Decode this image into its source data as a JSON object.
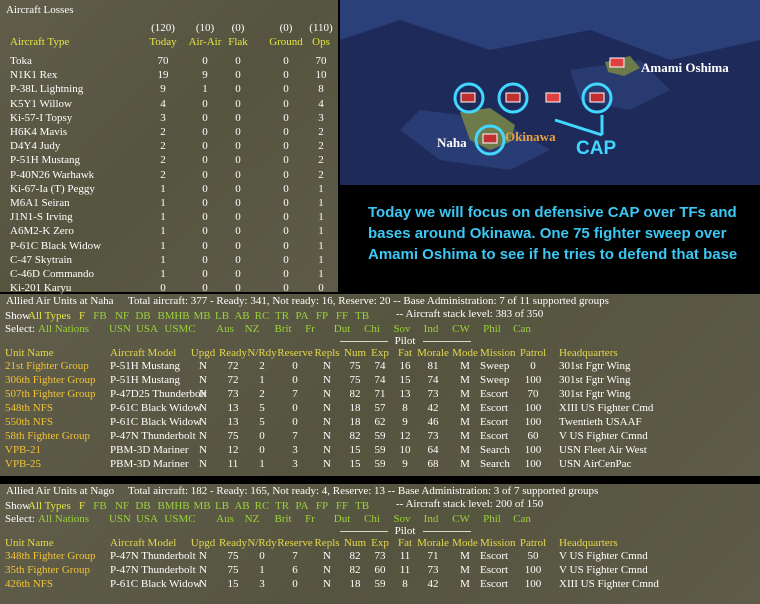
{
  "losses": {
    "title": "Aircraft Losses",
    "totals": [
      "(120)",
      "(10)",
      "(0)",
      "(0)",
      "(110)"
    ],
    "headers": [
      "Aircraft Type",
      "Today",
      "Air-Air",
      "Flak",
      "Ground",
      "Ops"
    ],
    "rows": [
      [
        "Toka",
        70,
        0,
        0,
        0,
        70
      ],
      [
        "N1K1 Rex",
        19,
        9,
        0,
        0,
        10
      ],
      [
        "P-38L Lightning",
        9,
        1,
        0,
        0,
        8
      ],
      [
        "K5Y1 Willow",
        4,
        0,
        0,
        0,
        4
      ],
      [
        "Ki-57-I Topsy",
        3,
        0,
        0,
        0,
        3
      ],
      [
        "H6K4 Mavis",
        2,
        0,
        0,
        0,
        2
      ],
      [
        "D4Y4 Judy",
        2,
        0,
        0,
        0,
        2
      ],
      [
        "P-51H Mustang",
        2,
        0,
        0,
        0,
        2
      ],
      [
        "P-40N26 Warhawk",
        2,
        0,
        0,
        0,
        2
      ],
      [
        "Ki-67-Ia (T) Peggy",
        1,
        0,
        0,
        0,
        1
      ],
      [
        "M6A1 Seiran",
        1,
        0,
        0,
        0,
        1
      ],
      [
        "J1N1-S Irving",
        1,
        0,
        0,
        0,
        1
      ],
      [
        "A6M2-K Zero",
        1,
        0,
        0,
        0,
        1
      ],
      [
        "P-61C Black Widow",
        1,
        0,
        0,
        0,
        1
      ],
      [
        "C-47 Skytrain",
        1,
        0,
        0,
        0,
        1
      ],
      [
        "C-46D Commando",
        1,
        0,
        0,
        0,
        1
      ],
      [
        "Ki-201 Karyu",
        0,
        0,
        0,
        0,
        0
      ]
    ]
  },
  "map": {
    "labels": [
      "Amami Oshima",
      "Naha",
      "Okinawa",
      "CAP"
    ]
  },
  "annotation": "Today we will focus on defensive CAP over TFs and bases around Okinawa. One 75 fighter sweep over Amami Oshima to see if he tries to defend that base",
  "bases": [
    {
      "title": "Allied Air Units at Naha",
      "summary": "Total aircraft: 377 - Ready: 341, Not ready: 16, Reserve: 20 -- Base Administration: 7 of 11 supported groups",
      "show_label": "Show",
      "types": [
        "All Types",
        "F",
        "FB",
        "NF",
        "DB",
        "BM",
        "HB",
        "MB",
        "LB",
        "AB",
        "RC",
        "TR",
        "PA",
        "FP",
        "FF",
        "TB"
      ],
      "select_label": "Select:",
      "nations": [
        "All Nations",
        "USN",
        "USA",
        "USMC",
        "Aus",
        "NZ",
        "Brit",
        "Fr",
        "Dut",
        "Chi",
        "Sov",
        "Ind",
        "CW",
        "Phil",
        "Can"
      ],
      "stack_level": "-- Aircraft stack level: 383 of 350",
      "pilot": "Pilot",
      "headers": [
        "Unit Name",
        "Aircraft Model",
        "Upgd",
        "Ready",
        "N/Rdy",
        "Reserve",
        "Repls",
        "Num",
        "Exp",
        "Fat",
        "Morale",
        "Mode",
        "Mission",
        "Patrol",
        "Headquarters"
      ],
      "rows": [
        [
          "21st Fighter Group",
          "P-51H Mustang",
          "N",
          72,
          2,
          0,
          "N",
          75,
          74,
          16,
          81,
          "M",
          "Sweep",
          0,
          "301st Fgtr Wing"
        ],
        [
          "306th Fighter Group",
          "P-51H Mustang",
          "N",
          72,
          1,
          0,
          "N",
          75,
          74,
          15,
          74,
          "M",
          "Sweep",
          100,
          "301st Fgtr Wing"
        ],
        [
          "507th Fighter Group",
          "P-47D25 Thunderbolt",
          "N",
          73,
          2,
          7,
          "N",
          82,
          71,
          13,
          73,
          "M",
          "Escort",
          70,
          "301st Fgtr Wing"
        ],
        [
          "548th NFS",
          "P-61C Black Widow",
          "N",
          13,
          5,
          0,
          "N",
          18,
          57,
          8,
          42,
          "M",
          "Escort",
          100,
          "XIII US Fighter Cmd"
        ],
        [
          "550th NFS",
          "P-61C Black Widow",
          "N",
          13,
          5,
          0,
          "N",
          18,
          62,
          9,
          46,
          "M",
          "Escort",
          100,
          "Twentieth USAAF"
        ],
        [
          "58th Fighter Group",
          "P-47N Thunderbolt",
          "N",
          75,
          0,
          7,
          "N",
          82,
          59,
          12,
          73,
          "M",
          "Escort",
          60,
          "V US Fighter Cmnd"
        ],
        [
          "VPB-21",
          "PBM-3D Mariner",
          "N",
          12,
          0,
          3,
          "N",
          15,
          59,
          10,
          64,
          "M",
          "Search",
          100,
          "USN Fleet Air West"
        ],
        [
          "VPB-25",
          "PBM-3D Mariner",
          "N",
          11,
          1,
          3,
          "N",
          15,
          59,
          9,
          68,
          "M",
          "Search",
          100,
          "USN AirCenPac"
        ]
      ]
    },
    {
      "title": "Allied Air Units at Nago",
      "summary": "Total aircraft: 182 - Ready: 165, Not ready: 4, Reserve: 13 -- Base Administration: 3 of 7 supported groups",
      "show_label": "Show",
      "types": [
        "All Types",
        "F",
        "FB",
        "NF",
        "DB",
        "BM",
        "HB",
        "MB",
        "LB",
        "AB",
        "RC",
        "TR",
        "PA",
        "FP",
        "FF",
        "TB"
      ],
      "select_label": "Select:",
      "nations": [
        "All Nations",
        "USN",
        "USA",
        "USMC",
        "Aus",
        "NZ",
        "Brit",
        "Fr",
        "Dut",
        "Chi",
        "Sov",
        "Ind",
        "CW",
        "Phil",
        "Can"
      ],
      "stack_level": "-- Aircraft stack level: 200 of 150",
      "pilot": "Pilot",
      "headers": [
        "Unit Name",
        "Aircraft Model",
        "Upgd",
        "Ready",
        "N/Rdy",
        "Reserve",
        "Repls",
        "Num",
        "Exp",
        "Fat",
        "Morale",
        "Mode",
        "Mission",
        "Patrol",
        "Headquarters"
      ],
      "rows": [
        [
          "348th Fighter Group",
          "P-47N Thunderbolt",
          "N",
          75,
          0,
          7,
          "N",
          82,
          73,
          11,
          71,
          "M",
          "Escort",
          50,
          "V US Fighter Cmnd"
        ],
        [
          "35th Fighter Group",
          "P-47N Thunderbolt",
          "N",
          75,
          1,
          6,
          "N",
          82,
          60,
          11,
          73,
          "M",
          "Escort",
          100,
          "V US Fighter Cmnd"
        ],
        [
          "426th NFS",
          "P-61C Black Widow",
          "N",
          15,
          3,
          0,
          "N",
          18,
          59,
          8,
          42,
          "M",
          "Escort",
          100,
          "XIII US Fighter Cmnd"
        ]
      ]
    }
  ]
}
